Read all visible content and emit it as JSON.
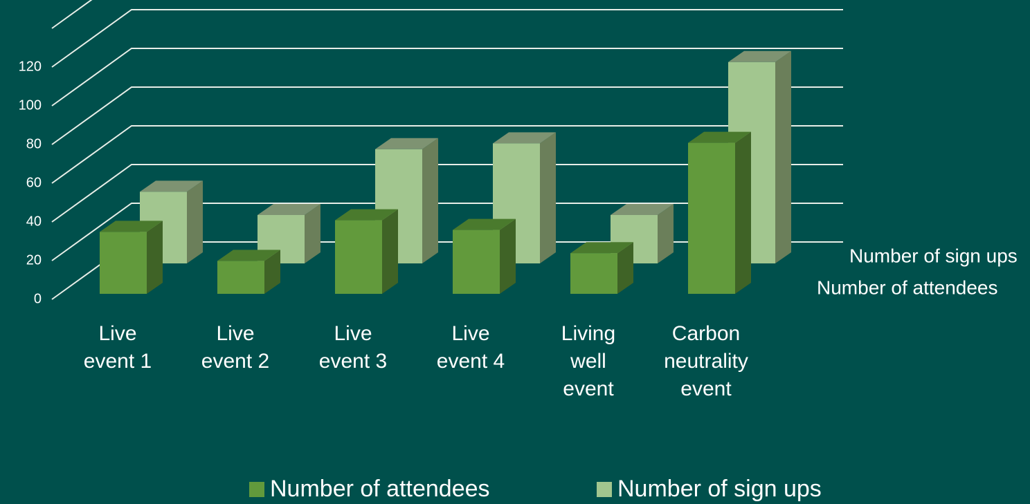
{
  "chart_data": {
    "type": "bar3d",
    "categories": [
      "Live event 1",
      "Live event 2",
      "Live event 3",
      "Live event 4",
      "Living well event",
      "Carbon neutrality event"
    ],
    "series": [
      {
        "name": "Number of attendees",
        "color": "#629a3c",
        "values": [
          32,
          17,
          38,
          33,
          21,
          78
        ]
      },
      {
        "name": "Number of sign ups",
        "color": "#a2c68f",
        "values": [
          37,
          25,
          59,
          62,
          25,
          104
        ]
      }
    ],
    "ylim": [
      0,
      140
    ],
    "yticks": [
      0,
      20,
      40,
      60,
      80,
      100,
      120
    ],
    "grid": true,
    "legend": "bottom"
  }
}
